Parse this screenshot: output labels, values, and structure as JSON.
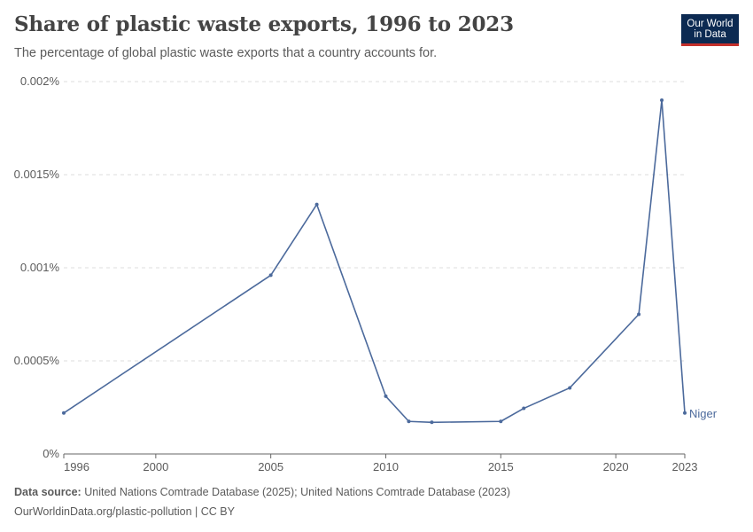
{
  "header": {
    "title": "Share of plastic waste exports, 1996 to 2023",
    "subtitle": "The percentage of global plastic waste exports that a country accounts for."
  },
  "logo": {
    "line1": "Our World",
    "line2": "in Data"
  },
  "footer": {
    "source_label": "Data source:",
    "source_text": "United Nations Comtrade Database (2025); United Nations Comtrade Database (2023)",
    "url_text": "OurWorldinData.org/plastic-pollution | CC BY"
  },
  "colors": {
    "series": "#4c6a9c",
    "grid": "#dddddd",
    "axis": "#666666",
    "text": "#5b5b5b"
  },
  "chart_data": {
    "type": "line",
    "title": "Share of plastic waste exports, 1996 to 2023",
    "subtitle": "The percentage of global plastic waste exports that a country accounts for.",
    "xlim": [
      1996,
      2023
    ],
    "ylim": [
      0,
      0.002
    ],
    "x_ticks": [
      1996,
      2000,
      2005,
      2010,
      2015,
      2020,
      2023
    ],
    "y_ticks": [
      {
        "value": 0,
        "label": "0%"
      },
      {
        "value": 0.0005,
        "label": "0.0005%"
      },
      {
        "value": 0.001,
        "label": "0.001%"
      },
      {
        "value": 0.0015,
        "label": "0.0015%"
      },
      {
        "value": 0.002,
        "label": "0.002%"
      }
    ],
    "grid": true,
    "series": [
      {
        "name": "Niger",
        "x": [
          1996,
          2005,
          2007,
          2010,
          2011,
          2012,
          2015,
          2016,
          2018,
          2021,
          2022,
          2023
        ],
        "y": [
          0.00022,
          0.00096,
          0.00134,
          0.00031,
          0.000175,
          0.00017,
          0.000175,
          0.000245,
          0.000355,
          0.00075,
          0.0019,
          0.00022
        ]
      }
    ]
  }
}
